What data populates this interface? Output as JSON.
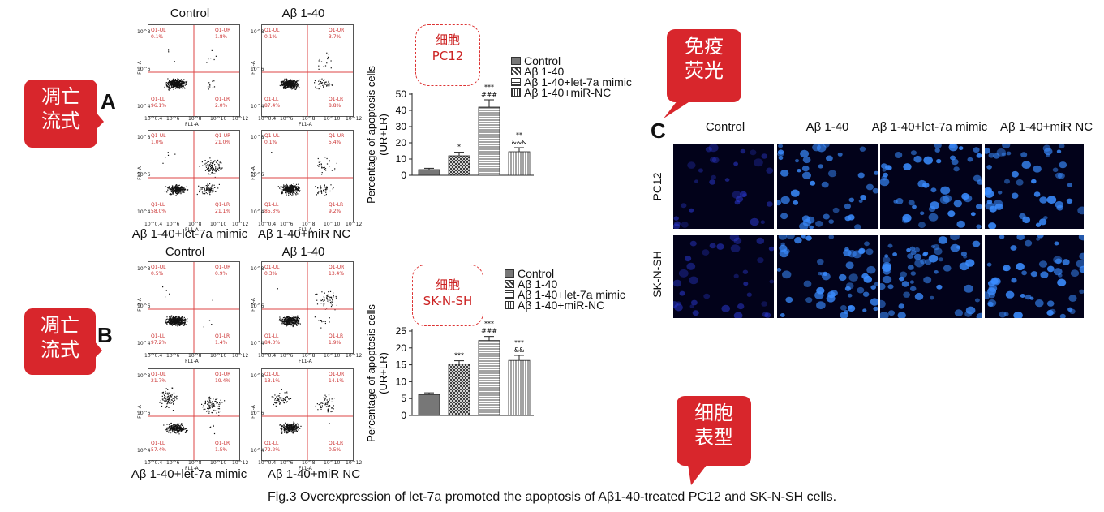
{
  "caption": "Fig.3 Overexpression of let-7a promoted the apoptosis of Aβ1-40-treated PC12 and SK-N-SH cells.",
  "colors": {
    "bubble": "#d8262c",
    "tag": "#cc2222",
    "quadrant": "#d44"
  },
  "bubbles": {
    "flow_a": "凋亡\n流式",
    "flow_b": "凋亡\n流式",
    "immuno": "免疫\n荧光",
    "phenotype": "细胞\n表型"
  },
  "panel_letters": {
    "a": "A",
    "b": "B",
    "c": "C"
  },
  "flow": {
    "axis_x": "FL1-A",
    "axis_y": "FL2-A",
    "ticks_x": [
      "10^0.4",
      "10^6",
      "10^8",
      "10^10",
      "10^12"
    ],
    "ticks_y": [
      "10^8",
      "10^6",
      "10^4"
    ],
    "quad_names": [
      "Q1-UL",
      "Q1-UR",
      "Q1-LL",
      "Q1-LR"
    ],
    "a_titles": {
      "top_left": "Control",
      "top_right": "Aβ 1-40",
      "bottom_left": "Aβ 1-40+let-7a mimic",
      "bottom_right": "Aβ 1-40+miR NC"
    },
    "b_titles": {
      "top_left": "Control",
      "top_right": "Aβ 1-40",
      "bottom_left": "Aβ 1-40+let-7a mimic",
      "bottom_right": "Aβ 1-40+miR NC"
    },
    "a_plots": [
      {
        "ul": "0.1%",
        "ur": "1.8%",
        "ll": "96.1%",
        "lr": "2.0%"
      },
      {
        "ul": "0.1%",
        "ur": "3.7%",
        "ll": "87.4%",
        "lr": "8.8%"
      },
      {
        "ul": "1.0%",
        "ur": "21.0%",
        "ll": "58.0%",
        "lr": "21.1%"
      },
      {
        "ul": "0.1%",
        "ur": "5.4%",
        "ll": "85.3%",
        "lr": "9.2%"
      }
    ],
    "b_plots": [
      {
        "ul": "0.5%",
        "ur": "0.9%",
        "ll": "97.2%",
        "lr": "1.4%"
      },
      {
        "ul": "0.3%",
        "ur": "13.4%",
        "ll": "84.3%",
        "lr": "1.9%"
      },
      {
        "ul": "21.7%",
        "ur": "19.4%",
        "ll": "57.4%",
        "lr": "1.5%"
      },
      {
        "ul": "13.1%",
        "ur": "14.1%",
        "ll": "72.2%",
        "lr": "0.5%"
      }
    ]
  },
  "tags": {
    "pc12": "细胞\nPC12",
    "sknsh": "细胞\nSK-N-SH"
  },
  "chart_data": [
    {
      "type": "bar",
      "categories": [
        "Control",
        "Aβ 1-40",
        "Aβ 1-40+let-7a mimic",
        "Aβ 1-40+miR-NC"
      ],
      "values": [
        3.5,
        12,
        42,
        14.5
      ],
      "errors": [
        0.8,
        2.2,
        4.5,
        2.5
      ],
      "annotations": [
        "",
        "*",
        "***\n###",
        "**\n&&&"
      ],
      "ylabel": "Percentage of apoptosis cells\n(UR+LR)",
      "ylim": [
        0,
        50
      ],
      "yticks": [
        0,
        10,
        20,
        30,
        40,
        50
      ],
      "legend": [
        "Control",
        "Aβ 1-40",
        "Aβ 1-40+let-7a mimic",
        "Aβ 1-40+miR-NC"
      ]
    },
    {
      "type": "bar",
      "categories": [
        "Control",
        "Aβ 1-40",
        "Aβ 1-40+let-7a mimic",
        "Aβ 1-40+miR-NC"
      ],
      "values": [
        6.2,
        15.2,
        22.2,
        16.3
      ],
      "errors": [
        0.5,
        1.0,
        1.2,
        1.5
      ],
      "annotations": [
        "",
        "***",
        "***\n###",
        "***\n&&"
      ],
      "ylabel": "Percentage of apoptosis cells\n(UR+LR)",
      "ylim": [
        0,
        25
      ],
      "yticks": [
        0,
        5,
        10,
        15,
        20,
        25
      ],
      "legend": [
        "Control",
        "Aβ 1-40",
        "Aβ 1-40+let-7a mimic",
        "Aβ 1-40+miR-NC"
      ]
    }
  ],
  "micrographs": {
    "columns": [
      "Control",
      "Aβ 1-40",
      "Aβ 1-40+let-7a mimic",
      "Aβ 1-40+miR NC"
    ],
    "rows": [
      "PC12",
      "SK-N-SH"
    ],
    "cell_color": "#3a8cff",
    "bg_color": "#02021a"
  }
}
